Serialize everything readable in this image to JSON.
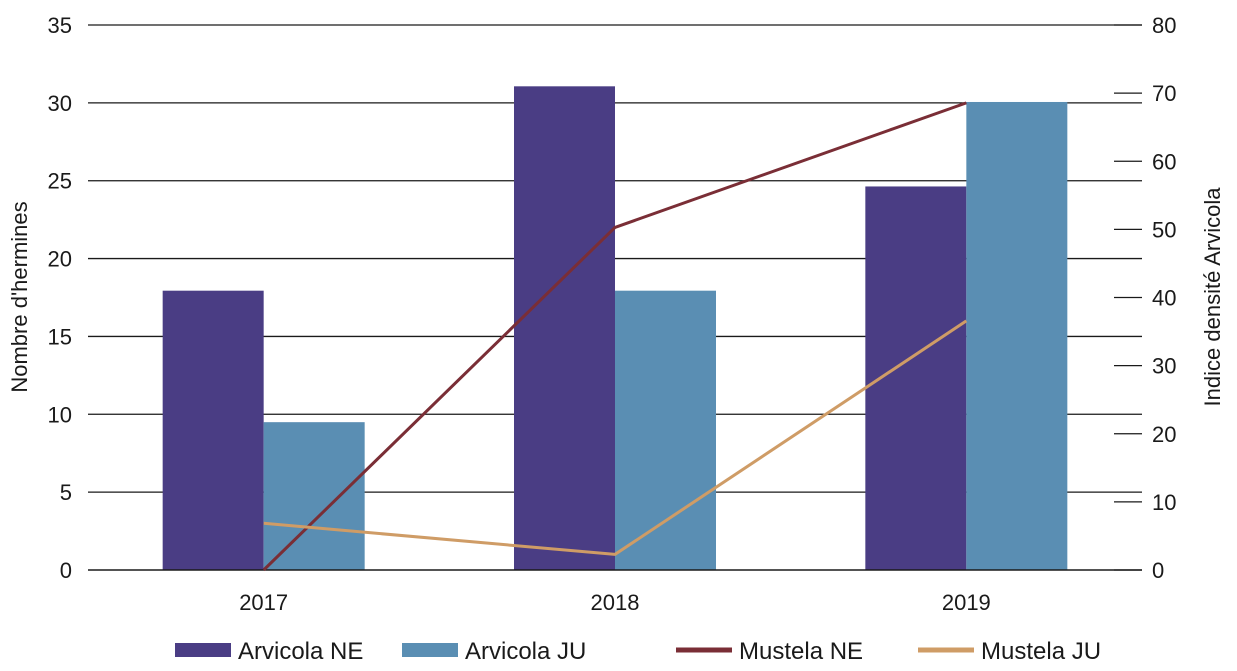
{
  "chart_data": {
    "type": "bar",
    "categories": [
      "2017",
      "2018",
      "2019"
    ],
    "y_left": {
      "label": "Nombre d'hermines",
      "min": 0,
      "max": 35,
      "ticks": [
        0,
        5,
        10,
        15,
        20,
        25,
        30,
        35
      ]
    },
    "y_right": {
      "label": "Indice densité Arvicola",
      "min": 0,
      "max": 80,
      "ticks": [
        0,
        10,
        20,
        30,
        40,
        50,
        60,
        70,
        80
      ]
    },
    "grid": true,
    "legend_position": "bottom",
    "series": [
      {
        "name": "Arvicola NE",
        "type": "bar",
        "axis": "right",
        "color": "#4a3d84",
        "values": [
          41,
          71,
          56.3
        ]
      },
      {
        "name": "Arvicola JU",
        "type": "bar",
        "axis": "right",
        "color": "#5a8eb3",
        "values": [
          21.7,
          41,
          68.7
        ]
      },
      {
        "name": "Mustela NE",
        "type": "line",
        "axis": "left",
        "color": "#7a2e36",
        "values": [
          0,
          22,
          30
        ]
      },
      {
        "name": "Mustela JU",
        "type": "line",
        "axis": "left",
        "color": "#cf9c66",
        "values": [
          3,
          1,
          16
        ]
      }
    ]
  }
}
